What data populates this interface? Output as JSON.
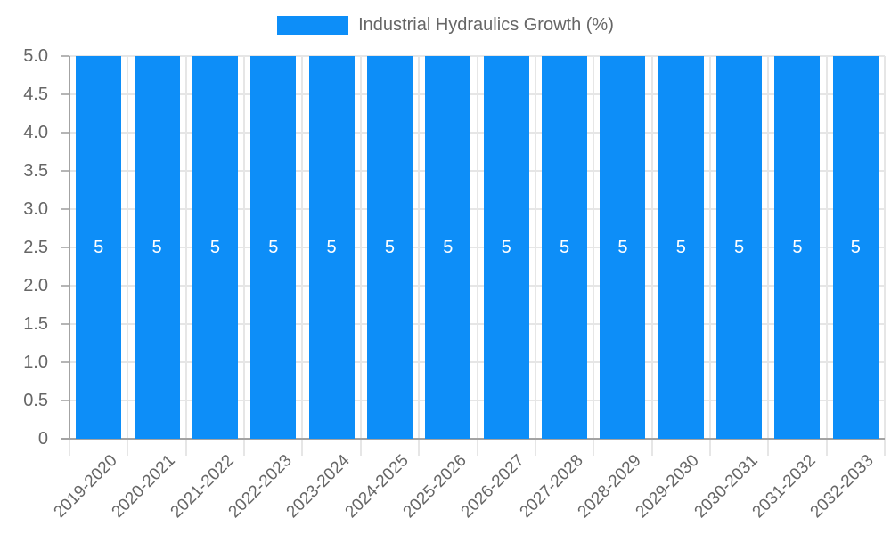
{
  "legend": {
    "label": "Industrial Hydraulics Growth (%)"
  },
  "chart_data": {
    "type": "bar",
    "title": "Industrial Hydraulics Growth (%)",
    "categories": [
      "2019-2020",
      "2020-2021",
      "2021-2022",
      "2022-2023",
      "2023-2024",
      "2024-2025",
      "2025-2026",
      "2026-2027",
      "2027-2028",
      "2028-2029",
      "2029-2030",
      "2030-2031",
      "2031-2032",
      "2032-2033"
    ],
    "values": [
      5,
      5,
      5,
      5,
      5,
      5,
      5,
      5,
      5,
      5,
      5,
      5,
      5,
      5
    ],
    "value_labels": [
      "5",
      "5",
      "5",
      "5",
      "5",
      "5",
      "5",
      "5",
      "5",
      "5",
      "5",
      "5",
      "5",
      "5"
    ],
    "xlabel": "",
    "ylabel": "",
    "ylim": [
      0,
      5
    ],
    "ytick_values": [
      0,
      0.5,
      1,
      1.5,
      2,
      2.5,
      3,
      3.5,
      4,
      4.5,
      5
    ],
    "ytick_labels": [
      "0",
      "0.5",
      "1.0",
      "1.5",
      "2.0",
      "2.5",
      "3.0",
      "3.5",
      "4.0",
      "4.5",
      "5.0"
    ],
    "grid": true,
    "legend_position": "top",
    "colors": {
      "bar": "#0d8ef8",
      "value_label": "#ffffff",
      "axis_text": "#666666",
      "grid_line": "#e6e6e6",
      "tick_mark": "#b5b5b5",
      "axis_line": "#a3a3a3",
      "background": "#ffffff"
    }
  }
}
